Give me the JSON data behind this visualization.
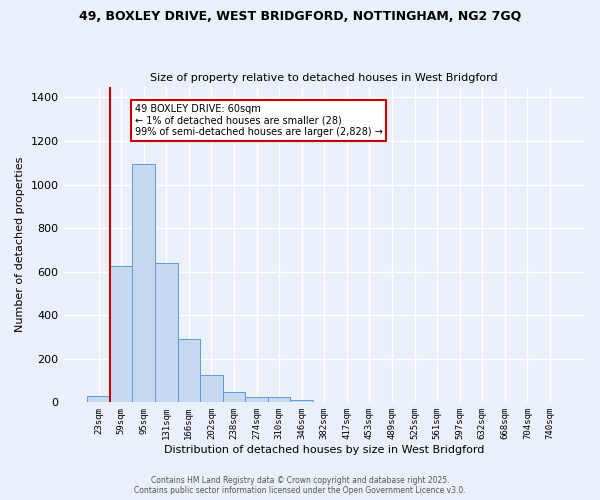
{
  "title_line1": "49, BOXLEY DRIVE, WEST BRIDGFORD, NOTTINGHAM, NG2 7GQ",
  "title_line2": "Size of property relative to detached houses in West Bridgford",
  "xlabel": "Distribution of detached houses by size in West Bridgford",
  "ylabel": "Number of detached properties",
  "categories": [
    "23sqm",
    "59sqm",
    "95sqm",
    "131sqm",
    "166sqm",
    "202sqm",
    "238sqm",
    "274sqm",
    "310sqm",
    "346sqm",
    "382sqm",
    "417sqm",
    "453sqm",
    "489sqm",
    "525sqm",
    "561sqm",
    "597sqm",
    "632sqm",
    "668sqm",
    "704sqm",
    "740sqm"
  ],
  "values": [
    30,
    625,
    1095,
    640,
    290,
    125,
    48,
    25,
    25,
    10,
    0,
    0,
    0,
    0,
    0,
    0,
    0,
    0,
    0,
    0,
    0
  ],
  "bar_color": "#c5d8f0",
  "bar_edge_color": "#5a9fd4",
  "vline_color": "#cc0000",
  "vline_x_index": 1.5,
  "annotation_text": "49 BOXLEY DRIVE: 60sqm\n← 1% of detached houses are smaller (28)\n99% of semi-detached houses are larger (2,828) →",
  "annotation_box_color": "#ffffff",
  "annotation_box_edge_color": "#cc0000",
  "background_color": "#eaf0fa",
  "grid_color": "#ffffff",
  "ylim": [
    0,
    1450
  ],
  "yticks": [
    0,
    200,
    400,
    600,
    800,
    1000,
    1200,
    1400
  ],
  "footer_line1": "Contains HM Land Registry data © Crown copyright and database right 2025.",
  "footer_line2": "Contains public sector information licensed under the Open Government Licence v3.0."
}
